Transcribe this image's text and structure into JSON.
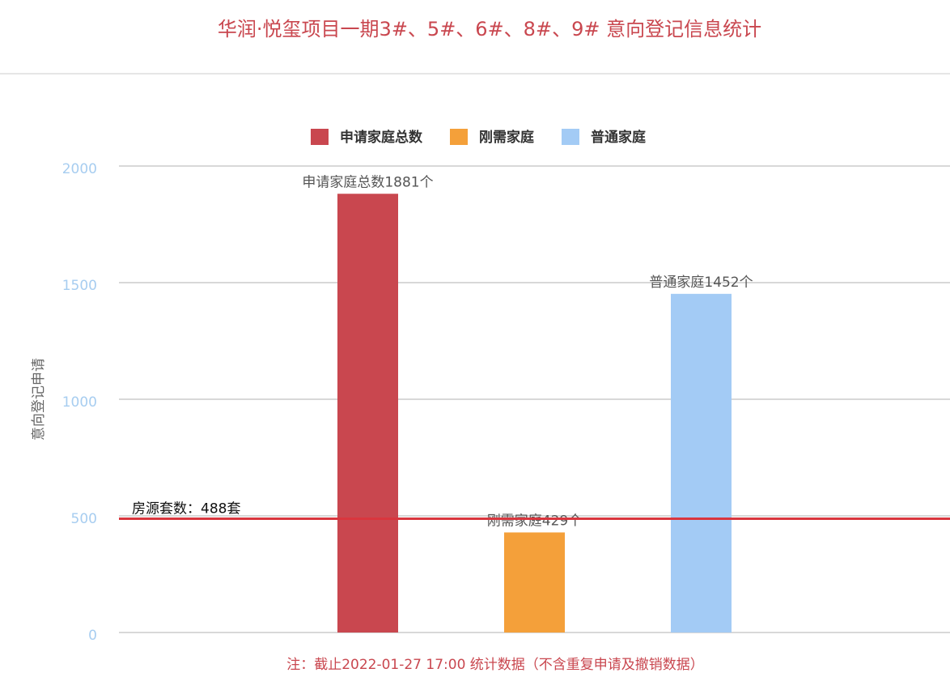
{
  "chart_data": {
    "type": "bar",
    "title": "华润·悦玺项目一期3#、5#、6#、8#、9# 意向登记信息统计",
    "y_label": "意向登记申请",
    "note": "注：截止2022-01-27 17:00 统计数据（不含重复申请及撤销数据）",
    "categories": [
      null
    ],
    "series": [
      {
        "name": "申请家庭总数",
        "color": "#c9474f",
        "values": [
          1881
        ],
        "value_labels": [
          "申请家庭总数1881个"
        ]
      },
      {
        "name": "刚需家庭",
        "color": "#f4a03a",
        "values": [
          429
        ],
        "value_labels": [
          "刚需家庭429个"
        ]
      },
      {
        "name": "普通家庭",
        "color": "#a3cbf5",
        "values": [
          1452
        ],
        "value_labels": [
          "普通家庭1452个"
        ]
      }
    ],
    "reference_lines": [
      {
        "value": 488,
        "label": "房源套数：488套",
        "color": "#d9363e"
      }
    ],
    "ylim": [
      0,
      2000
    ],
    "yticks": [
      0,
      500,
      1000,
      1500,
      2000
    ],
    "grid": true,
    "legend": "top"
  }
}
